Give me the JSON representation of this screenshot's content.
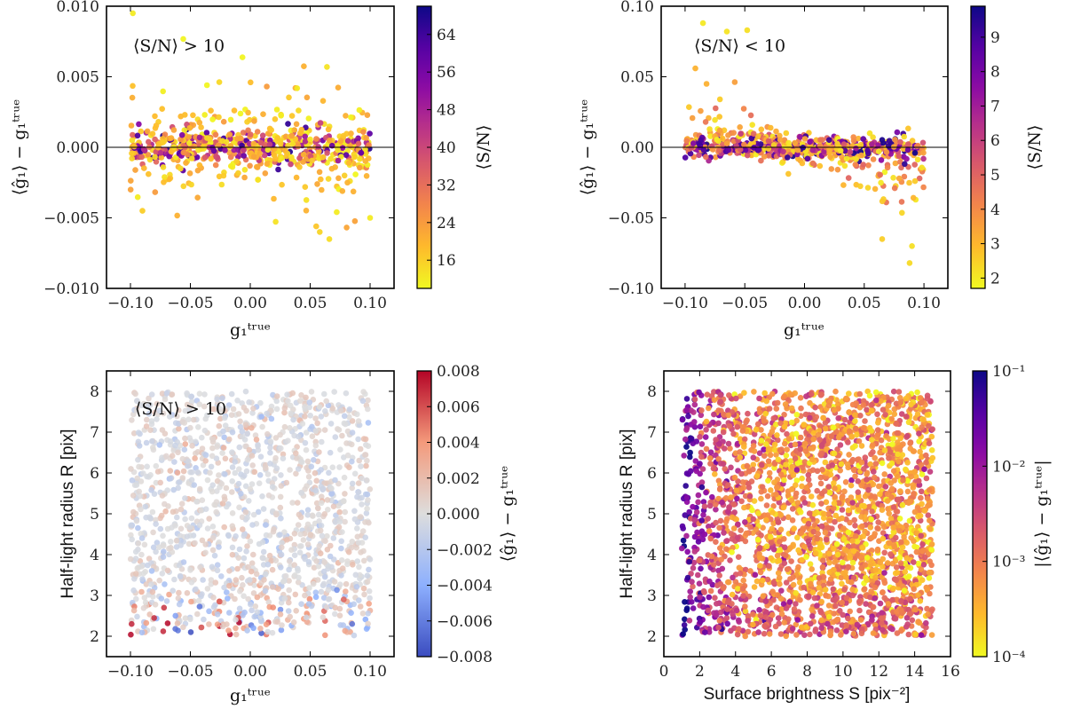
{
  "chart_data": [
    {
      "id": "tl",
      "type": "scatter",
      "annotation": "⟨S/N⟩ > 10",
      "xlabel": "g₁ᵗʳᵘᵉ",
      "ylabel": "⟨ĝ₁⟩ − g₁ᵗʳᵘᵉ",
      "xlim": [
        -0.12,
        0.12
      ],
      "ylim": [
        -0.01,
        0.01
      ],
      "xticks": [
        -0.1,
        -0.05,
        0.0,
        0.05,
        0.1
      ],
      "xtick_labels": [
        "−0.10",
        "−0.05",
        "0.00",
        "0.05",
        "0.10"
      ],
      "yticks": [
        -0.01,
        -0.005,
        0.0,
        0.005,
        0.01
      ],
      "ytick_labels": [
        "−0.010",
        "−0.005",
        "0.000",
        "0.005",
        "0.010"
      ],
      "hline": 0,
      "colorbar": {
        "label": "⟨S/N⟩",
        "colormap": "plasma_r",
        "scale": "linear",
        "range": [
          10,
          70
        ],
        "ticks": [
          16,
          24,
          32,
          40,
          48,
          56,
          64
        ],
        "tick_labels": [
          "16",
          "24",
          "32",
          "40",
          "48",
          "56",
          "64"
        ]
      },
      "points": {
        "count": 700,
        "x_range": [
          -0.1,
          0.1
        ],
        "y_core_sd": 0.0006,
        "y_tail_sd": 0.0022,
        "sample": [
          {
            "x": -0.098,
            "y": 0.0095,
            "c": 12
          },
          {
            "x": 0.066,
            "y": -0.0065,
            "c": 14
          },
          {
            "x": 0.058,
            "y": -0.006,
            "c": 15
          },
          {
            "x": 0.064,
            "y": 0.0057,
            "c": 13
          },
          {
            "x": -0.09,
            "y": -0.0045,
            "c": 16
          },
          {
            "x": 0.1,
            "y": -0.005,
            "c": 12
          }
        ]
      }
    },
    {
      "id": "tr",
      "type": "scatter",
      "annotation": "⟨S/N⟩ < 10",
      "xlabel": "g₁ᵗʳᵘᵉ",
      "ylabel": "⟨ĝ₁⟩ − g₁ᵗʳᵘᵉ",
      "xlim": [
        -0.12,
        0.12
      ],
      "ylim": [
        -0.1,
        0.1
      ],
      "xticks": [
        -0.1,
        -0.05,
        0.0,
        0.05,
        0.1
      ],
      "xtick_labels": [
        "−0.10",
        "−0.05",
        "0.00",
        "0.05",
        "0.10"
      ],
      "yticks": [
        -0.1,
        -0.05,
        0.0,
        0.05,
        0.1
      ],
      "ytick_labels": [
        "−0.10",
        "−0.05",
        "0.00",
        "0.05",
        "0.10"
      ],
      "hline": 0,
      "colorbar": {
        "label": "⟨S/N⟩",
        "colormap": "plasma_r",
        "scale": "linear",
        "range": [
          1.7,
          9.9
        ],
        "ticks": [
          2,
          3,
          4,
          5,
          6,
          7,
          8,
          9
        ],
        "tick_labels": [
          "2",
          "3",
          "4",
          "5",
          "6",
          "7",
          "8",
          "9"
        ]
      },
      "points": {
        "count": 650,
        "x_range": [
          -0.1,
          0.1
        ],
        "y_core_sd": 0.004,
        "sample": [
          {
            "x": -0.085,
            "y": 0.088,
            "c": 2.0
          },
          {
            "x": -0.065,
            "y": 0.082,
            "c": 2.1
          },
          {
            "x": -0.048,
            "y": 0.083,
            "c": 2.2
          },
          {
            "x": 0.088,
            "y": -0.082,
            "c": 2.3
          },
          {
            "x": 0.065,
            "y": -0.065,
            "c": 2.5
          },
          {
            "x": 0.09,
            "y": -0.07,
            "c": 2.2
          }
        ]
      }
    },
    {
      "id": "bl",
      "type": "scatter",
      "annotation": "⟨S/N⟩ > 10",
      "xlabel": "g₁ᵗʳᵘᵉ",
      "ylabel": "Half-light radius R [pix]",
      "xlim": [
        -0.12,
        0.12
      ],
      "ylim": [
        1.5,
        8.5
      ],
      "xticks": [
        -0.1,
        -0.05,
        0.0,
        0.05,
        0.1
      ],
      "xtick_labels": [
        "−0.10",
        "−0.05",
        "0.00",
        "0.05",
        "0.10"
      ],
      "yticks": [
        2,
        3,
        4,
        5,
        6,
        7,
        8
      ],
      "ytick_labels": [
        "2",
        "3",
        "4",
        "5",
        "6",
        "7",
        "8"
      ],
      "colorbar": {
        "label": "⟨ĝ₁⟩ − g₁ᵗʳᵘᵉ",
        "colormap": "coolwarm",
        "scale": "linear",
        "range": [
          -0.008,
          0.008
        ],
        "ticks": [
          -0.008,
          -0.006,
          -0.004,
          -0.002,
          0.0,
          0.002,
          0.004,
          0.006,
          0.008
        ],
        "tick_labels": [
          "−0.008",
          "−0.006",
          "−0.004",
          "−0.002",
          "0.000",
          "0.002",
          "0.004",
          "0.006",
          "0.008"
        ]
      },
      "points": {
        "count": 1400,
        "x_range": [
          -0.1,
          0.1
        ],
        "y_range": [
          2.0,
          8.0
        ],
        "sample": [
          {
            "x": -0.099,
            "y": 2.3,
            "c": 0.0072
          },
          {
            "x": -0.072,
            "y": 2.7,
            "c": 0.0068
          },
          {
            "x": 0.085,
            "y": 2.3,
            "c": -0.0065
          },
          {
            "x": 0.078,
            "y": 2.9,
            "c": 0.0055
          }
        ]
      }
    },
    {
      "id": "br",
      "type": "scatter",
      "annotation": "",
      "xlabel": "Surface brightness S [pix⁻²]",
      "ylabel": "Half-light radius R [pix]",
      "xlim": [
        0,
        16
      ],
      "ylim": [
        1.5,
        8.5
      ],
      "xticks": [
        0,
        2,
        4,
        6,
        8,
        10,
        12,
        14,
        16
      ],
      "xtick_labels": [
        "0",
        "2",
        "4",
        "6",
        "8",
        "10",
        "12",
        "14",
        "16"
      ],
      "yticks": [
        2,
        3,
        4,
        5,
        6,
        7,
        8
      ],
      "ytick_labels": [
        "2",
        "3",
        "4",
        "5",
        "6",
        "7",
        "8"
      ],
      "colorbar": {
        "label": "|⟨ĝ₁⟩ − g₁ᵗʳᵘᵉ|",
        "colormap": "plasma_r",
        "scale": "log",
        "range": [
          0.0001,
          0.1
        ],
        "ticks": [
          0.0001,
          0.001,
          0.01,
          0.1
        ],
        "tick_labels": [
          "10⁻⁴",
          "10⁻³",
          "10⁻²",
          "10⁻¹"
        ]
      },
      "points": {
        "count": 2600,
        "x_range": [
          1.0,
          15.0
        ],
        "y_range": [
          2.0,
          8.0
        ]
      }
    }
  ]
}
